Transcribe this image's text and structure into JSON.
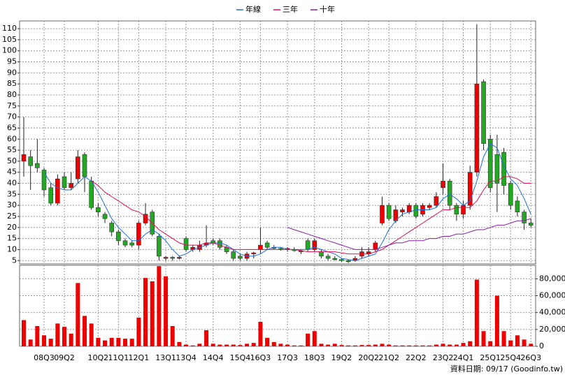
{
  "chart_data": {
    "type": "candlestick",
    "legend_position": "top",
    "grid": true,
    "up_color": "#ee0000",
    "down_color": "#22a822",
    "categories": [
      null,
      null,
      null,
      "08Q3",
      null,
      null,
      "09Q2",
      null,
      null,
      null,
      null,
      "10Q2",
      null,
      null,
      "11Q1",
      null,
      null,
      "12Q1",
      null,
      null,
      null,
      "13Q1",
      null,
      null,
      "13Q4",
      null,
      null,
      null,
      "14Q4",
      null,
      null,
      null,
      "15Q4",
      null,
      null,
      "16Q3",
      null,
      null,
      null,
      "17Q3",
      null,
      null,
      null,
      "18Q3",
      null,
      null,
      null,
      "19Q2",
      null,
      null,
      null,
      "20Q2",
      null,
      null,
      "21Q2",
      null,
      null,
      null,
      "22Q2",
      null,
      null,
      null,
      "23Q2",
      null,
      null,
      "24Q1",
      null,
      null,
      null,
      "25Q1",
      null,
      null,
      "25Q4",
      null,
      null,
      "26Q3"
    ],
    "open": [
      50,
      52,
      49,
      46,
      38,
      31,
      43,
      38,
      42,
      53,
      41,
      29,
      26,
      22,
      18,
      14,
      13,
      12,
      22,
      27,
      16,
      6,
      6.5,
      6,
      15,
      10,
      10,
      12,
      14,
      14,
      11,
      9,
      7,
      6,
      8,
      10,
      13,
      11,
      10.5,
      10,
      10,
      9,
      14,
      10,
      9,
      7,
      6,
      5.5,
      5,
      5,
      7,
      8,
      10,
      22,
      30,
      23,
      27,
      27,
      30,
      26,
      29,
      30,
      38,
      41,
      30,
      26,
      30,
      45,
      86,
      60,
      53,
      54,
      40,
      32,
      27,
      22
    ],
    "high": [
      70,
      55,
      60,
      47,
      40,
      44,
      45,
      45,
      55,
      54,
      43,
      31,
      27,
      23,
      19,
      15,
      14,
      23,
      31,
      28,
      17,
      7,
      7,
      7,
      16,
      12,
      14,
      21,
      15,
      15,
      12,
      10,
      8,
      9,
      9,
      20,
      14,
      12,
      11,
      11,
      11,
      10,
      15,
      15,
      10,
      8,
      7,
      6,
      5.5,
      7,
      11,
      11,
      14,
      34,
      31,
      30,
      29,
      31,
      31,
      31,
      31,
      36,
      49,
      42,
      31,
      32,
      48,
      112,
      87,
      62,
      62,
      56,
      41,
      34,
      28,
      24
    ],
    "low": [
      43,
      37,
      45,
      34,
      30,
      30,
      37,
      37,
      40,
      36,
      28,
      25,
      22,
      16,
      12,
      11,
      11,
      10,
      21,
      16,
      5,
      5,
      5,
      5.5,
      9,
      9,
      9,
      11,
      12,
      10,
      8,
      5,
      5,
      5,
      6,
      8,
      10,
      10,
      9.5,
      9,
      9,
      8,
      9,
      9,
      6,
      5,
      5,
      4.5,
      4,
      4.5,
      6,
      7,
      9,
      21,
      23,
      22,
      25,
      26,
      24,
      25,
      28,
      29,
      35,
      28,
      23,
      24,
      28,
      43,
      55,
      36,
      27,
      35,
      28,
      25,
      19,
      20
    ],
    "close": [
      53,
      48,
      47,
      37,
      31,
      42,
      38,
      40,
      52,
      43,
      29,
      27,
      24,
      18,
      14,
      12,
      12,
      22,
      26,
      17,
      7,
      6.5,
      6,
      6.5,
      10,
      11,
      12,
      13,
      13,
      11,
      9,
      6,
      6,
      8,
      8.5,
      12,
      11,
      10.5,
      10,
      10.5,
      9.5,
      9.5,
      10,
      14,
      7,
      6,
      5.5,
      5,
      4.5,
      6,
      9,
      9,
      13,
      30,
      24,
      28,
      28,
      30,
      25,
      30,
      30,
      34,
      41,
      30,
      26,
      30,
      45,
      85,
      58,
      38,
      40,
      39,
      30,
      27,
      22,
      21
    ],
    "ylim": [
      3.5,
      113.5
    ],
    "yticks": [
      5,
      10,
      15,
      20,
      25,
      30,
      35,
      40,
      45,
      50,
      55,
      60,
      65,
      70,
      75,
      80,
      85,
      90,
      95,
      100,
      105,
      110
    ],
    "lines": [
      {
        "name": "年線",
        "color": "#1e6fd9",
        "values": [
          null,
          null,
          null,
          45,
          40,
          38,
          37,
          37,
          40,
          43,
          41,
          36,
          30,
          24,
          20,
          17,
          14,
          14,
          17,
          19,
          17,
          14,
          10,
          7,
          8,
          10,
          11,
          12,
          13,
          13,
          12,
          10,
          8,
          7,
          7,
          8,
          10,
          11,
          11,
          10,
          10,
          10,
          10,
          11,
          10,
          9,
          8,
          6,
          5.5,
          5,
          6,
          7,
          8,
          13,
          19,
          23,
          26,
          27,
          28,
          28,
          28,
          29,
          33,
          35,
          33,
          30,
          32,
          41,
          52,
          58,
          56,
          48,
          42,
          39,
          33,
          26
        ]
      },
      {
        "name": "三年",
        "color": "#dd1155",
        "values": [
          null,
          null,
          null,
          null,
          null,
          null,
          null,
          null,
          null,
          null,
          41,
          39,
          36,
          34,
          32,
          30,
          28,
          27,
          25,
          22,
          19,
          17,
          15,
          13,
          12,
          12,
          12,
          13,
          13,
          12,
          11,
          10,
          10,
          10,
          10,
          10,
          10,
          10,
          10,
          10,
          10,
          9.5,
          9,
          9,
          9,
          9,
          9,
          8.5,
          8,
          8,
          8,
          8,
          9,
          10,
          12,
          14,
          16,
          18,
          20,
          22,
          24,
          26,
          28,
          28,
          29,
          29,
          29,
          32,
          37,
          41,
          41,
          43,
          43,
          42,
          40,
          40
        ]
      },
      {
        "name": "十年",
        "color": "#8a1fa8",
        "values": [
          null,
          null,
          null,
          null,
          null,
          null,
          null,
          null,
          null,
          null,
          null,
          null,
          null,
          null,
          null,
          null,
          null,
          null,
          null,
          null,
          null,
          null,
          null,
          null,
          null,
          null,
          null,
          null,
          null,
          null,
          null,
          null,
          null,
          null,
          null,
          null,
          null,
          null,
          null,
          20,
          19,
          18,
          17,
          16,
          15,
          14,
          13,
          12,
          11,
          10,
          10,
          10,
          10,
          11,
          12,
          13,
          13,
          14,
          14,
          14,
          15,
          15,
          16,
          16,
          17,
          17,
          18,
          19,
          19,
          20,
          21,
          21,
          22,
          23,
          23,
          24
        ]
      }
    ],
    "volume": {
      "type": "bar",
      "color": "#ee0000",
      "values": [
        31000,
        8000,
        24000,
        13000,
        9000,
        27000,
        23000,
        15000,
        75000,
        36000,
        27000,
        10000,
        7000,
        10000,
        10000,
        9000,
        9000,
        34000,
        81000,
        77000,
        95000,
        83000,
        24000,
        5000,
        2000,
        1000,
        3000,
        19000,
        3000,
        2000,
        2000,
        2000,
        1500,
        3000,
        4000,
        29000,
        10000,
        5000,
        3000,
        2000,
        1000,
        1000,
        15000,
        18000,
        3000,
        2000,
        3000,
        1500,
        1000,
        1000,
        1500,
        1500,
        2000,
        3000,
        2000,
        1000,
        1000,
        1000,
        1000,
        1000,
        1000,
        2000,
        3000,
        2000,
        2000,
        4000,
        6000,
        79000,
        18000,
        6000,
        60000,
        18000,
        7000,
        13000,
        8000,
        3000
      ],
      "ylim": [
        0,
        96000
      ],
      "yticks": [
        0,
        {
          "value": 20000,
          "label": "20,000"
        },
        {
          "value": 40000,
          "label": "40,000"
        },
        {
          "value": 60000,
          "label": "60,000"
        },
        {
          "value": 80000,
          "label": "80,000"
        }
      ]
    },
    "footer": "資料日期: 09/17  (Goodinfo.tw)"
  }
}
